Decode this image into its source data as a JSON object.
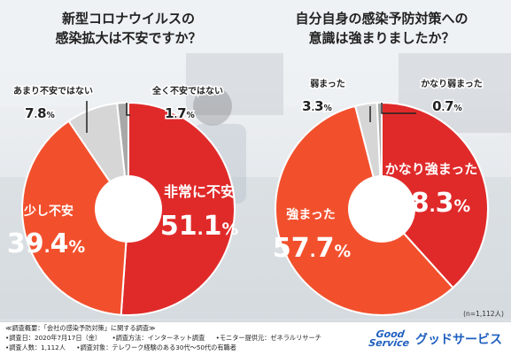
{
  "chart_data": [
    {
      "type": "pie",
      "title": "新型コロナウイルスの\n感染拡大は不安ですか？",
      "slices": [
        {
          "label": "非常に不安",
          "value": 51.1,
          "color": "#e02a2a"
        },
        {
          "label": "少し不安",
          "value": 39.4,
          "color": "#f2502d"
        },
        {
          "label": "あまり不安ではない",
          "value": 7.8,
          "color": "#d6d6d6"
        },
        {
          "label": "全く不安ではない",
          "value": 1.7,
          "color": "#a8a8a8"
        }
      ]
    },
    {
      "type": "pie",
      "title": "自分自身の感染予防対策への\n意識は強まりましたか？",
      "slices": [
        {
          "label": "かなり強まった",
          "value": 38.3,
          "color": "#e02a2a"
        },
        {
          "label": "強まった",
          "value": 57.7,
          "color": "#f2502d"
        },
        {
          "label": "弱まった",
          "value": 3.3,
          "color": "#d6d6d6"
        },
        {
          "label": "かなり弱まった",
          "value": 0.7,
          "color": "#a8a8a8"
        }
      ]
    }
  ],
  "note": "(n=1,112人)",
  "footer": {
    "line1": "≪調査概要：「会社の感染予防対策」に関する調査≫",
    "line2": [
      "•調査日：2020年7月17日（金）",
      "•調査方法：インターネット調査",
      "•モニター提供元：ゼネラルリサーチ"
    ],
    "line3": [
      "•調査人数：1,112人",
      "•調査対象：テレワーク経験のある30代〜50代の有職者"
    ],
    "brand_logo": [
      "Good",
      "Service"
    ],
    "brand_name": "グッドサービス"
  },
  "colors": {
    "dark_red": "#e02a2a",
    "orange_red": "#f2502d",
    "light_gray": "#d6d6d6",
    "mid_gray": "#a8a8a8"
  }
}
